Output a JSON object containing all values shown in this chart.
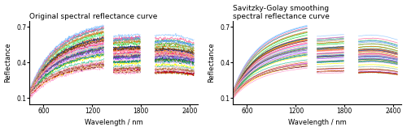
{
  "title_left": "Original spectral reflectance curve",
  "title_right": "Savitzky-Golay smoothing\nspectral reflectance curve",
  "xlabel": "Wavelength / nm",
  "ylabel": "Reflectance",
  "xlim": [
    430,
    2500
  ],
  "ylim": [
    0.05,
    0.75
  ],
  "yticks": [
    0.1,
    0.4,
    0.7
  ],
  "xticks": [
    600,
    1200,
    1800,
    2400
  ],
  "n_curves": 50,
  "seed": 42,
  "background_color": "#ffffff",
  "title_fontsize": 6.5,
  "label_fontsize": 6,
  "tick_fontsize": 5.5,
  "lw": 0.5,
  "colors_pool": [
    "#4daf4a",
    "#33cc33",
    "#00cc00",
    "#66ff00",
    "#99cc00",
    "#3399ff",
    "#0066cc",
    "#6699ff",
    "#0099cc",
    "#00cccc",
    "#9933ff",
    "#cc66ff",
    "#cc00cc",
    "#ff66ff",
    "#ff99cc",
    "#ff3300",
    "#ff6600",
    "#ff9900",
    "#ffcc00",
    "#ffff00",
    "#cc3300",
    "#cc6600",
    "#996633",
    "#cc9900",
    "#999900",
    "#006633",
    "#009966",
    "#33cc99",
    "#66cccc",
    "#99ffcc",
    "#003399",
    "#336699",
    "#6699cc",
    "#99ccff",
    "#ccccff",
    "#660066",
    "#993399",
    "#cc66cc",
    "#ff99ff",
    "#ffccff",
    "#cc0000",
    "#ff3366",
    "#ff6699",
    "#ff99bb",
    "#ffccdd",
    "#663300",
    "#996633",
    "#cc9966",
    "#ffcc99",
    "#ffe5cc"
  ]
}
